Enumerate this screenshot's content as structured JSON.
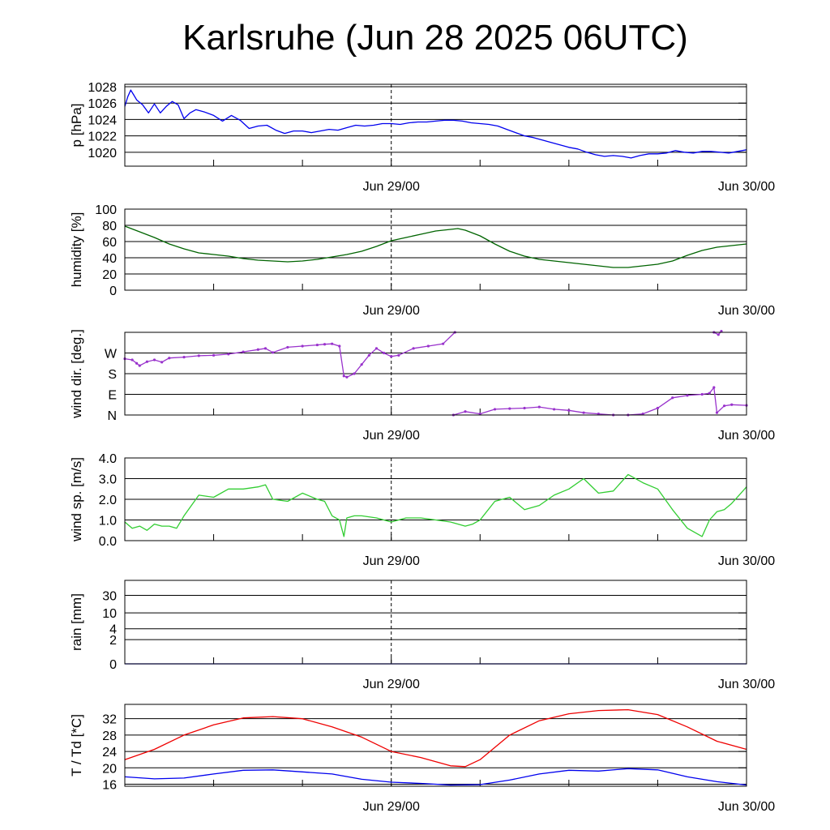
{
  "title": "Karlsruhe (Jun 28 2025 06UTC)",
  "chart_data": [
    {
      "type": "line",
      "ylabel": "p [hPa]",
      "ylim": [
        1018.3,
        1028.3
      ],
      "yticks": [
        1020,
        1022,
        1024,
        1026,
        1028
      ],
      "ytick_labels": [
        "1020",
        "1022",
        "1024",
        "1026",
        "1028"
      ],
      "xlim": [
        0,
        42
      ],
      "xticks": [
        18,
        42
      ],
      "xtick_labels": [
        "Jun 29/00",
        "Jun 30/00"
      ],
      "series": [
        {
          "color": "#0000ee",
          "x": [
            0,
            0.2,
            0.4,
            0.6,
            0.8,
            1.2,
            1.6,
            2.0,
            2.4,
            2.8,
            3.2,
            3.6,
            4.0,
            4.4,
            4.8,
            5.4,
            6.0,
            6.6,
            7.2,
            7.8,
            8.4,
            9.0,
            9.6,
            10.2,
            10.8,
            11.4,
            12.0,
            12.6,
            13.2,
            13.8,
            14.4,
            15.0,
            15.6,
            16.2,
            16.8,
            17.4,
            18.0,
            18.6,
            19.2,
            19.8,
            20.4,
            21.0,
            21.6,
            22.2,
            22.8,
            23.4,
            24.0,
            24.6,
            25.2,
            25.8,
            26.4,
            27.0,
            27.6,
            28.2,
            28.8,
            29.4,
            30.0,
            30.6,
            31.2,
            31.8,
            32.4,
            33.0,
            33.6,
            34.2,
            34.8,
            35.4,
            36.0,
            36.6,
            37.2,
            37.8,
            38.4,
            39.0,
            39.6,
            40.2,
            40.8,
            41.4,
            42.0
          ],
          "y": [
            1025.6,
            1026.8,
            1027.6,
            1027.0,
            1026.4,
            1025.8,
            1024.8,
            1025.9,
            1024.8,
            1025.6,
            1026.2,
            1025.8,
            1024.1,
            1024.8,
            1025.2,
            1024.9,
            1024.5,
            1023.8,
            1024.5,
            1023.9,
            1022.9,
            1023.2,
            1023.3,
            1022.7,
            1022.3,
            1022.6,
            1022.6,
            1022.4,
            1022.6,
            1022.8,
            1022.7,
            1023.0,
            1023.3,
            1023.2,
            1023.3,
            1023.5,
            1023.5,
            1023.4,
            1023.6,
            1023.7,
            1023.7,
            1023.8,
            1023.9,
            1023.9,
            1023.8,
            1023.6,
            1023.5,
            1023.4,
            1023.2,
            1022.8,
            1022.4,
            1022.0,
            1021.8,
            1021.5,
            1021.2,
            1020.9,
            1020.6,
            1020.4,
            1020.0,
            1019.7,
            1019.5,
            1019.6,
            1019.5,
            1019.3,
            1019.6,
            1019.8,
            1019.8,
            1019.9,
            1020.2,
            1020.0,
            1019.9,
            1020.1,
            1020.1,
            1020.0,
            1019.9,
            1020.1,
            1020.3
          ]
        }
      ]
    },
    {
      "type": "line",
      "ylabel": "humidity [%]",
      "ylim": [
        0,
        100
      ],
      "yticks": [
        0,
        20,
        40,
        60,
        80,
        100
      ],
      "ytick_labels": [
        "0",
        "20",
        "40",
        "60",
        "80",
        "100"
      ],
      "xlim": [
        0,
        42
      ],
      "xticks": [
        18,
        42
      ],
      "xtick_labels": [
        "Jun 29/00",
        "Jun 30/00"
      ],
      "series": [
        {
          "color": "#006400",
          "x": [
            0,
            1,
            2,
            3,
            4,
            5,
            6,
            7,
            8,
            9,
            10,
            11,
            12,
            13,
            14,
            15,
            16,
            17,
            18,
            19,
            20,
            21,
            22,
            22.5,
            23,
            24,
            25,
            26,
            27,
            28,
            29,
            30,
            31,
            32,
            33,
            34,
            35,
            36,
            37,
            38,
            39,
            40,
            41,
            42
          ],
          "y": [
            79,
            72,
            65,
            57,
            51,
            46,
            44,
            42,
            39,
            37,
            36,
            35,
            36,
            38,
            41,
            44,
            48,
            54,
            61,
            65,
            69,
            73,
            75,
            76,
            74,
            67,
            57,
            48,
            42,
            38,
            36,
            34,
            32,
            30,
            28,
            28,
            30,
            32,
            36,
            43,
            49,
            53,
            55,
            57
          ]
        }
      ]
    },
    {
      "type": "scatter",
      "ylabel": "wind dir. [deg.]",
      "ylim": [
        0,
        360
      ],
      "yticks": [
        0,
        90,
        180,
        270
      ],
      "ytick_labels": [
        "N",
        "E",
        "S",
        "W"
      ],
      "xlim": [
        0,
        42
      ],
      "xticks": [
        18,
        42
      ],
      "xtick_labels": [
        "Jun 29/00",
        "Jun 30/00"
      ],
      "series": [
        {
          "color": "#9932cc",
          "x": [
            0,
            0.5,
            0.8,
            1.0,
            1.5,
            2.0,
            2.5,
            3.0,
            4.0,
            5.0,
            6.0,
            7.0,
            8.0,
            9.0,
            9.5,
            10.0,
            11.0,
            12.0,
            13.0,
            13.5,
            14.0,
            14.5,
            14.8,
            15.0,
            15.5,
            16.0,
            16.5,
            17.0,
            17.5,
            18.0,
            18.5,
            19.5,
            20.5,
            21.5,
            22.3
          ],
          "y": [
            245,
            240,
            225,
            215,
            232,
            240,
            230,
            248,
            252,
            258,
            260,
            265,
            275,
            285,
            290,
            272,
            295,
            300,
            305,
            308,
            310,
            300,
            170,
            165,
            180,
            220,
            260,
            290,
            270,
            255,
            260,
            290,
            300,
            310,
            360
          ]
        },
        {
          "color": "#9932cc",
          "x": [
            22.2,
            23.0,
            24.0,
            25.0,
            26.0,
            27.0,
            28.0,
            29.0,
            30.0,
            31.0,
            32.0,
            33.0,
            34.0,
            35.0,
            36.0,
            37.0,
            38.0,
            39.0,
            39.5,
            39.8,
            40.0,
            40.5,
            41.0,
            42.0
          ],
          "y": [
            0,
            15,
            5,
            25,
            28,
            30,
            35,
            25,
            20,
            10,
            5,
            0,
            0,
            5,
            30,
            75,
            85,
            90,
            95,
            120,
            10,
            40,
            45,
            42
          ]
        },
        {
          "color": "#9932cc",
          "x": [
            39.8,
            40.1,
            40.3
          ],
          "y": [
            360,
            350,
            365
          ]
        }
      ]
    },
    {
      "type": "line",
      "ylabel": "wind sp. [m/s]",
      "ylim": [
        0,
        4
      ],
      "yticks": [
        0,
        1,
        2,
        3,
        4
      ],
      "ytick_labels": [
        "0.0",
        "1.0",
        "2.0",
        "3.0",
        "4.0"
      ],
      "xlim": [
        0,
        42
      ],
      "xticks": [
        18,
        42
      ],
      "xtick_labels": [
        "Jun 29/00",
        "Jun 30/00"
      ],
      "series": [
        {
          "color": "#32cd32",
          "x": [
            0,
            0.5,
            1.0,
            1.5,
            2.0,
            2.5,
            3.0,
            3.5,
            4.0,
            5.0,
            6.0,
            7.0,
            8.0,
            9.0,
            9.5,
            10.0,
            11.0,
            12.0,
            13.0,
            13.5,
            14.0,
            14.5,
            14.8,
            15.0,
            15.5,
            16.0,
            17.0,
            18.0,
            19.0,
            20.0,
            21.0,
            22.0,
            23.0,
            23.5,
            24.0,
            25.0,
            26.0,
            27.0,
            28.0,
            29.0,
            30.0,
            31.0,
            32.0,
            33.0,
            34.0,
            35.0,
            36.0,
            37.0,
            38.0,
            39.0,
            39.5,
            40.0,
            40.5,
            41.0,
            41.5,
            42.0
          ],
          "y": [
            0.9,
            0.6,
            0.7,
            0.5,
            0.8,
            0.7,
            0.7,
            0.6,
            1.2,
            2.2,
            2.1,
            2.5,
            2.5,
            2.6,
            2.7,
            2.0,
            1.9,
            2.3,
            2.0,
            1.9,
            1.2,
            1.0,
            0.2,
            1.1,
            1.2,
            1.2,
            1.1,
            0.9,
            1.1,
            1.1,
            1.0,
            0.9,
            0.7,
            0.8,
            1.0,
            1.9,
            2.1,
            1.5,
            1.7,
            2.2,
            2.5,
            3.0,
            2.3,
            2.4,
            3.2,
            2.8,
            2.5,
            1.5,
            0.6,
            0.2,
            1.0,
            1.4,
            1.5,
            1.8,
            2.2,
            2.6
          ]
        }
      ]
    },
    {
      "type": "line",
      "ylabel": "rain [mm]",
      "ylim": [
        0,
        30
      ],
      "yticks": [
        0,
        2,
        4,
        10,
        30
      ],
      "ytick_labels": [
        "0",
        "2",
        "4",
        "10",
        "30"
      ],
      "xlim": [
        0,
        42
      ],
      "xticks": [
        18,
        42
      ],
      "xtick_labels": [
        "Jun 29/00",
        "Jun 30/00"
      ],
      "series": [
        {
          "color": "#0000ee",
          "x": [
            0,
            42
          ],
          "y": [
            0,
            0
          ]
        }
      ]
    },
    {
      "type": "line",
      "ylabel": "T / Td [*C]",
      "ylim": [
        15.5,
        35.5
      ],
      "yticks": [
        16,
        20,
        24,
        28,
        32
      ],
      "ytick_labels": [
        "16",
        "20",
        "24",
        "28",
        "32"
      ],
      "xlim": [
        0,
        42
      ],
      "xticks": [
        18,
        42
      ],
      "xtick_labels": [
        "Jun 29/00",
        "Jun 30/00"
      ],
      "series": [
        {
          "color": "#ee0000",
          "x": [
            0,
            2,
            4,
            6,
            8,
            10,
            12,
            14,
            16,
            18,
            20,
            22,
            23,
            24,
            26,
            28,
            30,
            32,
            34,
            36,
            38,
            40,
            42
          ],
          "y": [
            22.0,
            24.5,
            28.0,
            30.5,
            32.2,
            32.5,
            32.0,
            30.0,
            27.5,
            24.0,
            22.5,
            20.5,
            20.3,
            22.0,
            28.0,
            31.5,
            33.2,
            34.0,
            34.2,
            33.0,
            30.0,
            26.5,
            24.5
          ]
        },
        {
          "color": "#0000ee",
          "x": [
            0,
            2,
            4,
            6,
            8,
            10,
            12,
            14,
            16,
            18,
            20,
            22,
            24,
            26,
            28,
            30,
            32,
            34,
            36,
            38,
            40,
            42
          ],
          "y": [
            17.8,
            17.3,
            17.5,
            18.5,
            19.4,
            19.5,
            19.0,
            18.5,
            17.2,
            16.5,
            16.2,
            15.8,
            15.9,
            17.0,
            18.5,
            19.4,
            19.2,
            19.8,
            19.5,
            17.8,
            16.6,
            15.8
          ]
        }
      ]
    }
  ]
}
